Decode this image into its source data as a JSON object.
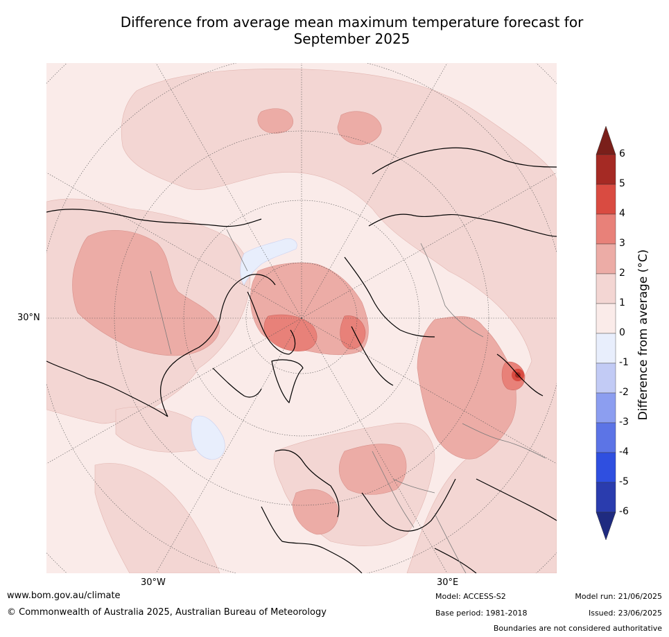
{
  "title_line1": "Difference from average mean maximum temperature forecast for",
  "title_line2": "September 2025",
  "graticule_labels": {
    "lat_30n": "30°N",
    "lon_30w": "30°W",
    "lon_30e": "30°E"
  },
  "colorbar": {
    "label": "Difference from average (°C)",
    "ticks": [
      "6",
      "5",
      "4",
      "3",
      "2",
      "1",
      "0",
      "-1",
      "-2",
      "-3",
      "-4",
      "-5",
      "-6"
    ],
    "bins_top_to_bottom": [
      "#a52a24",
      "#d94b41",
      "#e88179",
      "#ecaca6",
      "#f3d6d3",
      "#faebe9",
      "#e8eefc",
      "#c2cbf5",
      "#8c9ef0",
      "#5c74e6",
      "#2f4fe0",
      "#2a3cae"
    ],
    "over_color": "#7a1f1a",
    "under_color": "#1f2b80"
  },
  "chart_data": {
    "type": "map",
    "projection": "north polar stereographic",
    "variable": "Difference from average mean maximum temperature",
    "period": "September 2025",
    "units": "°C",
    "levels": [
      -6,
      -5,
      -4,
      -3,
      -2,
      -1,
      0,
      1,
      2,
      3,
      4,
      5,
      6
    ],
    "extend": "both",
    "colorbar_position": "right"
  },
  "footer": {
    "url": "www.bom.gov.au/climate",
    "copyright": "© Commonwealth of Australia 2025, Australian Bureau of Meteorology",
    "model": "Model: ACCESS-S2",
    "base_period": "Base period: 1981-2018",
    "model_run": "Model run: 21/06/2025",
    "issued": "Issued: 23/06/2025",
    "disclaimer": "Boundaries are not considered authoritative"
  }
}
